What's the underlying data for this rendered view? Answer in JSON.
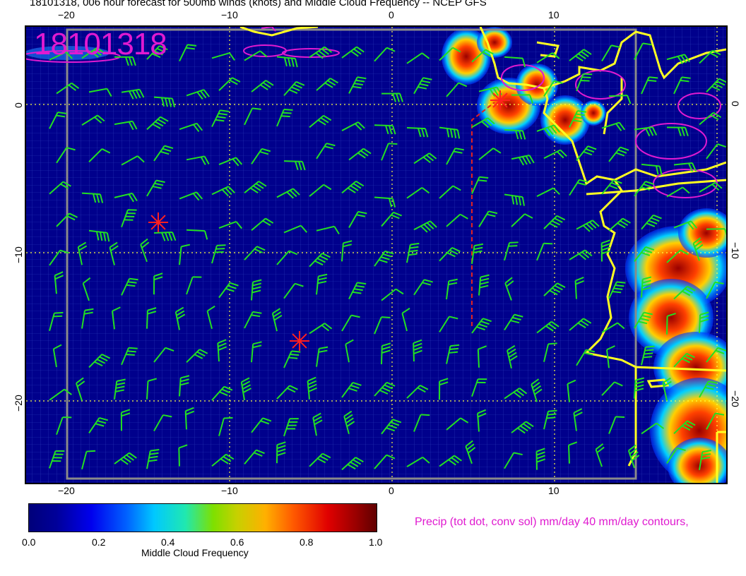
{
  "title": "18101318, 006 hour forecast for 500mb winds (knots) and Middle Cloud Frequency -- NCEP GFS",
  "stamp": "18101318",
  "lon_ticks": [
    "−20",
    "−10",
    "0",
    "10"
  ],
  "lat_ticks_left": [
    "0",
    "−10",
    "−20"
  ],
  "lat_ticks_right": [
    "0",
    "−10",
    "−20"
  ],
  "colorbar": {
    "title": "Middle Cloud Frequency",
    "tick_labels": [
      "0.0",
      "0.2",
      "0.4",
      "0.6",
      "0.8",
      "1.0"
    ],
    "range": [
      0.0,
      1.0
    ]
  },
  "precip_note": "Precip (tot dot, conv sol) mm/day 40 mm/day contours,",
  "colors": {
    "ocean_background": "#00008c",
    "wind_barbs": "#22e022",
    "coastline": "#ffff22",
    "precip_contours": "#e01ad0",
    "storm_markers": "#ff2020",
    "graticule": "#ffff40"
  },
  "icons": [
    "wind-barb-icon",
    "storm-star-icon",
    "precip-contour-icon"
  ]
}
